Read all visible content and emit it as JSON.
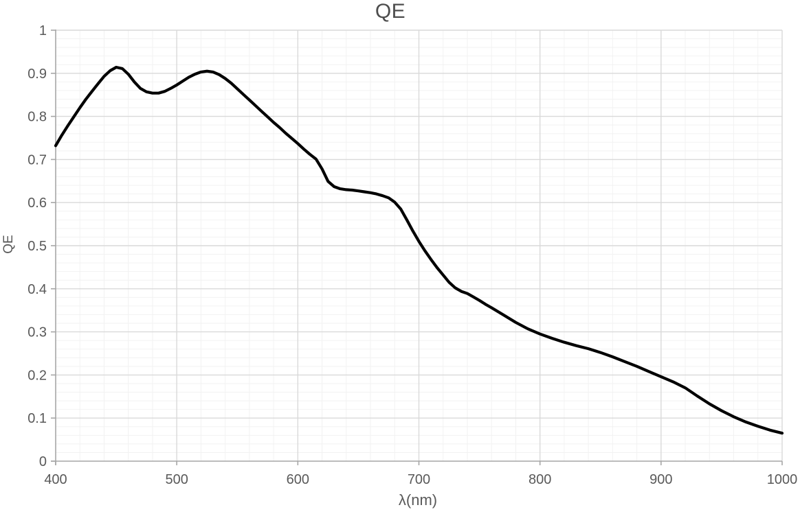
{
  "chart_data": {
    "type": "line",
    "title": "QE",
    "xlabel": "λ(nm)",
    "ylabel": "QE",
    "xlim": [
      400,
      1000
    ],
    "ylim": [
      0,
      1
    ],
    "x_major_step": 100,
    "x_minor_step": 20,
    "y_major_step": 0.1,
    "y_minor_step": 0.02,
    "x_ticks": [
      400,
      500,
      600,
      700,
      800,
      900,
      1000
    ],
    "y_ticks": [
      0,
      0.1,
      0.2,
      0.3,
      0.4,
      0.5,
      0.6,
      0.7,
      0.8,
      0.9,
      1
    ],
    "grid": "on",
    "legend": "none",
    "style": {
      "minor_grid_color": "#f2f2f2",
      "major_grid_color": "#d9d9d9",
      "axis_color": "#a6a6a6",
      "line_color": "#000000",
      "line_width": 4.2,
      "text_color": "#595959",
      "title_color": "#4d4d4d"
    },
    "series": [
      {
        "name": "QE",
        "points": [
          [
            400,
            0.732
          ],
          [
            405,
            0.756
          ],
          [
            410,
            0.778
          ],
          [
            415,
            0.799
          ],
          [
            420,
            0.82
          ],
          [
            425,
            0.84
          ],
          [
            430,
            0.858
          ],
          [
            435,
            0.876
          ],
          [
            440,
            0.893
          ],
          [
            445,
            0.906
          ],
          [
            450,
            0.914
          ],
          [
            455,
            0.911
          ],
          [
            460,
            0.898
          ],
          [
            465,
            0.88
          ],
          [
            470,
            0.865
          ],
          [
            475,
            0.857
          ],
          [
            480,
            0.854
          ],
          [
            485,
            0.854
          ],
          [
            490,
            0.858
          ],
          [
            495,
            0.865
          ],
          [
            500,
            0.873
          ],
          [
            505,
            0.882
          ],
          [
            510,
            0.891
          ],
          [
            515,
            0.898
          ],
          [
            520,
            0.903
          ],
          [
            525,
            0.905
          ],
          [
            530,
            0.903
          ],
          [
            535,
            0.897
          ],
          [
            540,
            0.888
          ],
          [
            545,
            0.877
          ],
          [
            550,
            0.864
          ],
          [
            555,
            0.851
          ],
          [
            560,
            0.838
          ],
          [
            565,
            0.825
          ],
          [
            570,
            0.812
          ],
          [
            575,
            0.799
          ],
          [
            580,
            0.786
          ],
          [
            585,
            0.774
          ],
          [
            590,
            0.761
          ],
          [
            595,
            0.749
          ],
          [
            600,
            0.737
          ],
          [
            605,
            0.724
          ],
          [
            610,
            0.712
          ],
          [
            615,
            0.701
          ],
          [
            620,
            0.678
          ],
          [
            625,
            0.649
          ],
          [
            630,
            0.637
          ],
          [
            635,
            0.632
          ],
          [
            640,
            0.63
          ],
          [
            645,
            0.629
          ],
          [
            650,
            0.627
          ],
          [
            655,
            0.625
          ],
          [
            660,
            0.623
          ],
          [
            665,
            0.62
          ],
          [
            670,
            0.616
          ],
          [
            675,
            0.611
          ],
          [
            680,
            0.601
          ],
          [
            685,
            0.585
          ],
          [
            690,
            0.56
          ],
          [
            695,
            0.534
          ],
          [
            700,
            0.51
          ],
          [
            705,
            0.488
          ],
          [
            710,
            0.468
          ],
          [
            715,
            0.449
          ],
          [
            720,
            0.432
          ],
          [
            725,
            0.415
          ],
          [
            730,
            0.402
          ],
          [
            735,
            0.394
          ],
          [
            740,
            0.389
          ],
          [
            745,
            0.381
          ],
          [
            750,
            0.373
          ],
          [
            755,
            0.364
          ],
          [
            760,
            0.356
          ],
          [
            770,
            0.339
          ],
          [
            780,
            0.322
          ],
          [
            790,
            0.307
          ],
          [
            800,
            0.295
          ],
          [
            810,
            0.285
          ],
          [
            820,
            0.276
          ],
          [
            830,
            0.268
          ],
          [
            840,
            0.261
          ],
          [
            850,
            0.252
          ],
          [
            860,
            0.242
          ],
          [
            870,
            0.231
          ],
          [
            880,
            0.22
          ],
          [
            890,
            0.208
          ],
          [
            900,
            0.196
          ],
          [
            910,
            0.184
          ],
          [
            920,
            0.17
          ],
          [
            930,
            0.151
          ],
          [
            940,
            0.133
          ],
          [
            950,
            0.117
          ],
          [
            960,
            0.103
          ],
          [
            970,
            0.091
          ],
          [
            980,
            0.081
          ],
          [
            990,
            0.072
          ],
          [
            1000,
            0.065
          ]
        ]
      }
    ]
  }
}
